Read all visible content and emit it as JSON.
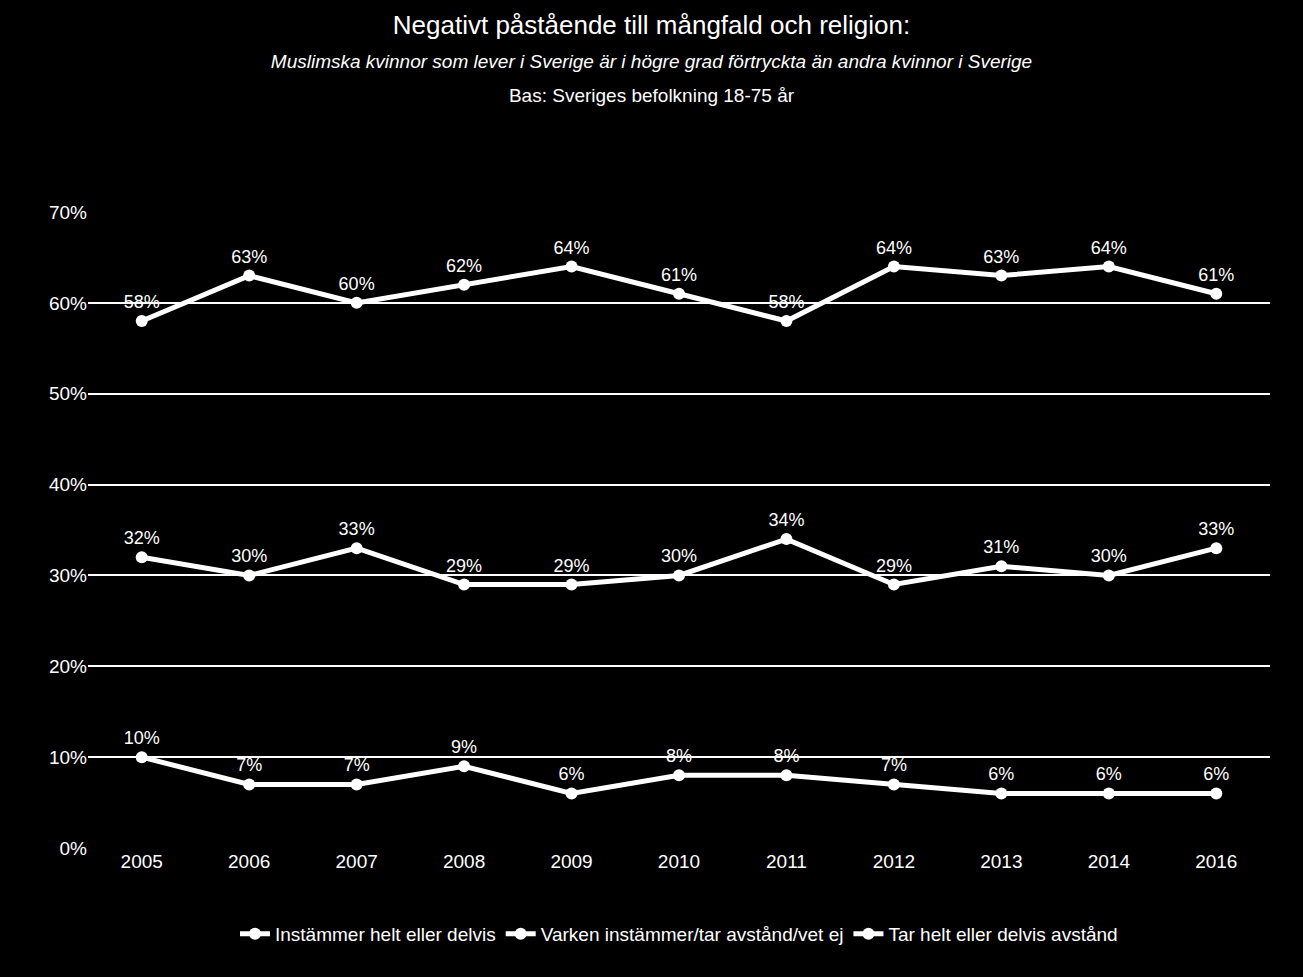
{
  "chart_data": {
    "type": "line",
    "title": "Negativt påstående till mångfald och religion:",
    "subtitle": "Muslimska kvinnor som lever i Sverige är i högre grad förtryckta än andra kvinnor i Sverige",
    "annotations": [
      "Bas: Sveriges befolkning 18-75 år"
    ],
    "categories": [
      "2005",
      "2006",
      "2007",
      "2008",
      "2009",
      "2010",
      "2011",
      "2012",
      "2013",
      "2014",
      "2016"
    ],
    "series": [
      {
        "name": "Instämmer helt eller delvis",
        "color": "#ffffff",
        "values": [
          58,
          63,
          60,
          62,
          64,
          61,
          58,
          64,
          63,
          64,
          61
        ],
        "value_labels": [
          "58%",
          "63%",
          "60%",
          "62%",
          "64%",
          "61%",
          "58%",
          "64%",
          "63%",
          "64%",
          "61%"
        ]
      },
      {
        "name": "Varken instämmer/tar avstånd/vet ej",
        "color": "#ffffff",
        "values": [
          32,
          30,
          33,
          29,
          29,
          30,
          34,
          29,
          31,
          30,
          33
        ],
        "value_labels": [
          "32%",
          "30%",
          "33%",
          "29%",
          "29%",
          "30%",
          "34%",
          "29%",
          "31%",
          "30%",
          "33%"
        ]
      },
      {
        "name": "Tar helt eller delvis avstånd",
        "color": "#ffffff",
        "values": [
          10,
          7,
          7,
          9,
          6,
          8,
          8,
          7,
          6,
          6,
          6
        ],
        "value_labels": [
          "10%",
          "7%",
          "7%",
          "9%",
          "6%",
          "8%",
          "8%",
          "7%",
          "6%",
          "6%",
          "6%"
        ]
      }
    ],
    "ylim": [
      0,
      70
    ],
    "yticks": [
      {
        "value": 0,
        "label": "0%"
      },
      {
        "value": 10,
        "label": "10%"
      },
      {
        "value": 20,
        "label": "20%"
      },
      {
        "value": 30,
        "label": "30%"
      },
      {
        "value": 40,
        "label": "40%"
      },
      {
        "value": 50,
        "label": "50%"
      },
      {
        "value": 60,
        "label": "60%"
      },
      {
        "value": 70,
        "label": "70%"
      }
    ],
    "grid": true,
    "legend": "bottom",
    "data_labels": true,
    "marker": "circle"
  }
}
